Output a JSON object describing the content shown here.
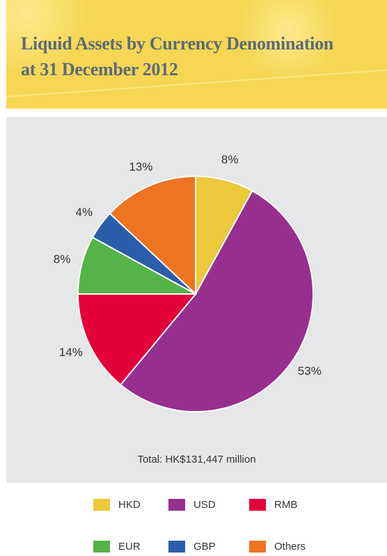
{
  "header": {
    "title_line1": "Liquid Assets by Currency Denomination",
    "title_line2": "at 31 December 2012"
  },
  "chart_data": {
    "type": "pie",
    "title": "Liquid Assets by Currency Denomination at 31 December 2012",
    "unit": "%",
    "slices": [
      {
        "name": "HKD",
        "value": 8,
        "label": "8%",
        "color": "#ecc93a"
      },
      {
        "name": "USD",
        "value": 53,
        "label": "53%",
        "color": "#972f8f"
      },
      {
        "name": "RMB",
        "value": 14,
        "label": "14%",
        "color": "#e40038"
      },
      {
        "name": "EUR",
        "value": 8,
        "label": "8%",
        "color": "#55b447"
      },
      {
        "name": "GBP",
        "value": 4,
        "label": "4%",
        "color": "#2b5eaa"
      },
      {
        "name": "Others",
        "value": 13,
        "label": "13%",
        "color": "#ee7422"
      }
    ],
    "total_text": "Total: HK$131,447 million",
    "legend_position": "bottom"
  }
}
